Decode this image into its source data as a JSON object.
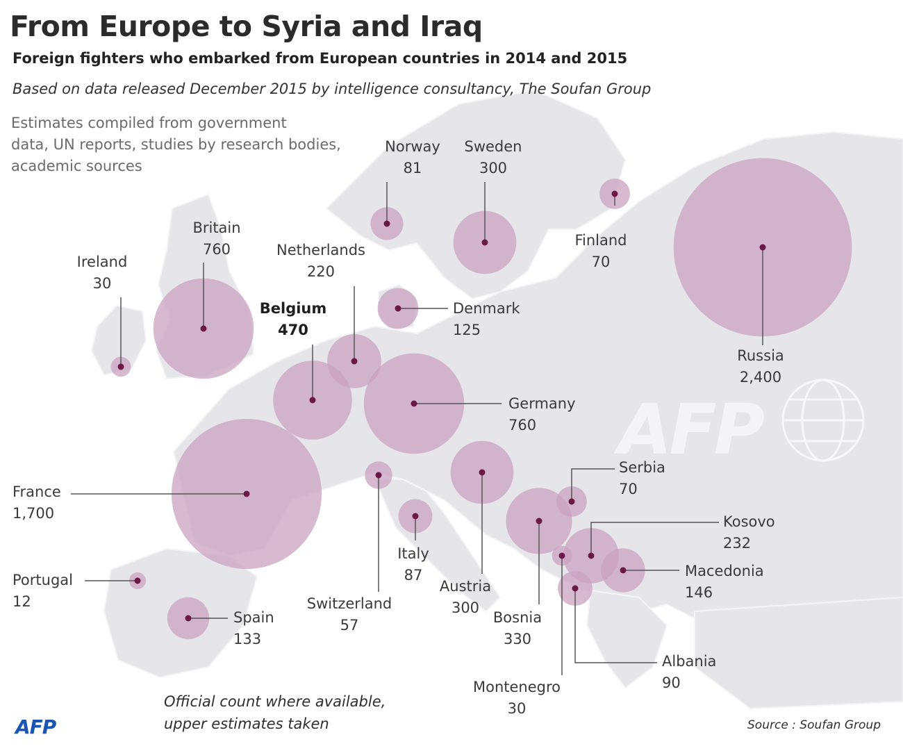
{
  "title": "From Europe to Syria and Iraq",
  "subtitle": "Foreign fighters who embarked from European countries in 2014 and 2015",
  "based_on": "Based on data released December 2015 by intelligence consultancy, The Soufan Group",
  "estimates_lines": [
    "Estimates compiled from government",
    "data, UN reports, studies by research bodies,",
    "academic sources"
  ],
  "footnote_lines": [
    "Official count where available,",
    "upper estimates taken"
  ],
  "source": "Source : Soufan Group",
  "logo": "AFP",
  "watermark": "AFP",
  "colors": {
    "bubble": "#c9a2c0",
    "bubble_opacity": 0.75,
    "dot": "#6a1846",
    "land": "#e6e6ea",
    "sea": "#ffffff",
    "leader": "#555555"
  },
  "countries": [
    {
      "name": "Norway",
      "value": 81,
      "value_label": "81"
    },
    {
      "name": "Sweden",
      "value": 300,
      "value_label": "300"
    },
    {
      "name": "Finland",
      "value": 70,
      "value_label": "70"
    },
    {
      "name": "Russia",
      "value": 2400,
      "value_label": "2,400"
    },
    {
      "name": "Britain",
      "value": 760,
      "value_label": "760"
    },
    {
      "name": "Ireland",
      "value": 30,
      "value_label": "30"
    },
    {
      "name": "Netherlands",
      "value": 220,
      "value_label": "220"
    },
    {
      "name": "Belgium",
      "value": 470,
      "value_label": "470",
      "highlight": true
    },
    {
      "name": "Denmark",
      "value": 125,
      "value_label": "125"
    },
    {
      "name": "Germany",
      "value": 760,
      "value_label": "760"
    },
    {
      "name": "France",
      "value": 1700,
      "value_label": "1,700"
    },
    {
      "name": "Portugal",
      "value": 12,
      "value_label": "12"
    },
    {
      "name": "Spain",
      "value": 133,
      "value_label": "133"
    },
    {
      "name": "Switzerland",
      "value": 57,
      "value_label": "57"
    },
    {
      "name": "Italy",
      "value": 87,
      "value_label": "87"
    },
    {
      "name": "Austria",
      "value": 300,
      "value_label": "300"
    },
    {
      "name": "Bosnia",
      "value": 330,
      "value_label": "330"
    },
    {
      "name": "Serbia",
      "value": 70,
      "value_label": "70"
    },
    {
      "name": "Kosovo",
      "value": 232,
      "value_label": "232"
    },
    {
      "name": "Macedonia",
      "value": 146,
      "value_label": "146"
    },
    {
      "name": "Montenegro",
      "value": 30,
      "value_label": "30"
    },
    {
      "name": "Albania",
      "value": 90,
      "value_label": "90"
    }
  ]
}
